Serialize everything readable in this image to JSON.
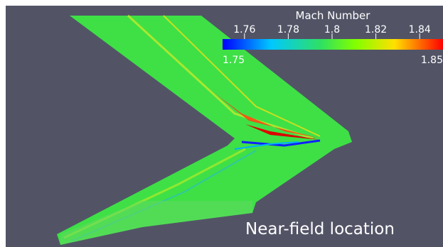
{
  "colorbar": {
    "title": "Mach Number",
    "range": [
      1.75,
      1.85
    ],
    "ticks": [
      1.76,
      1.78,
      1.8,
      1.82,
      1.84
    ]
  },
  "annotation": "Near-field location"
}
